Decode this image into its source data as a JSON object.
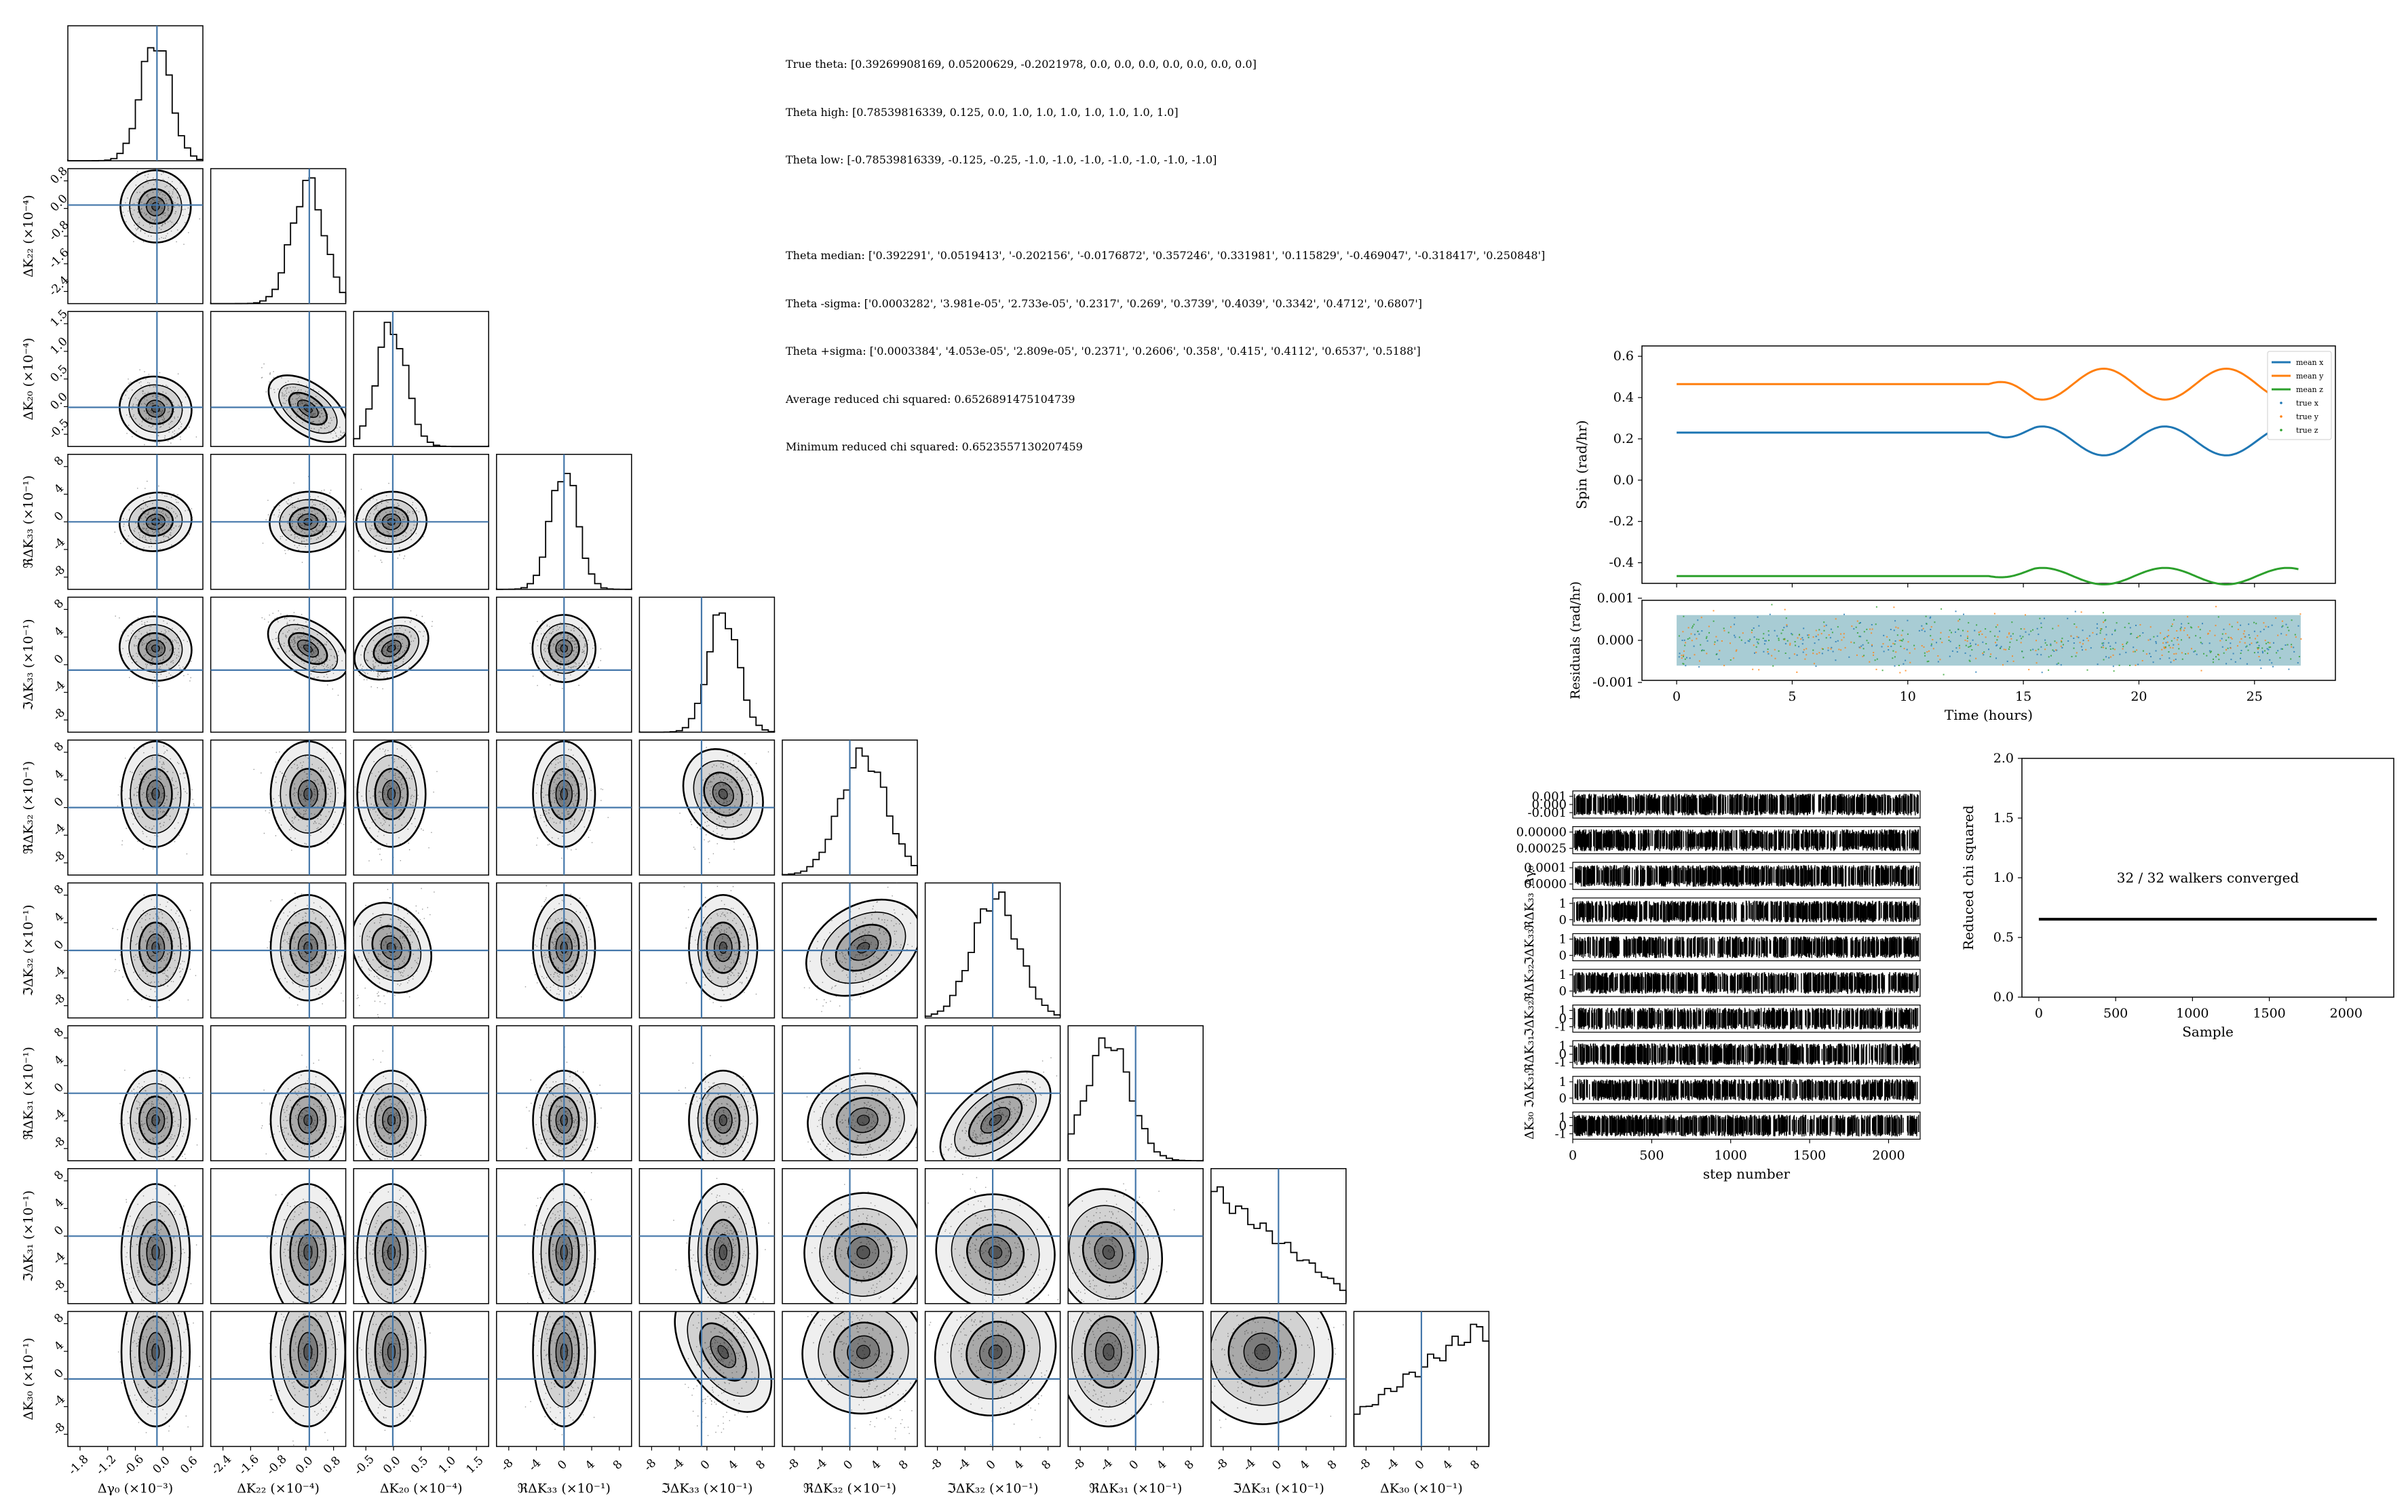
{
  "info_text": {
    "true_theta": "True theta: [0.39269908169, 0.05200629, -0.2021978, 0.0, 0.0, 0.0, 0.0, 0.0, 0.0, 0.0]",
    "theta_high": "Theta high: [0.78539816339, 0.125, 0.0, 1.0, 1.0, 1.0, 1.0, 1.0, 1.0, 1.0]",
    "theta_low": "Theta low: [-0.78539816339, -0.125, -0.25, -1.0, -1.0, -1.0, -1.0, -1.0, -1.0, -1.0]",
    "blank": "",
    "theta_median": "Theta median: ['0.392291', '0.0519413', '-0.202156', '-0.0176872', '0.357246', '0.331981', '0.115829', '-0.469047', '-0.318417', '0.250848']",
    "theta_minus_sigma": "Theta -sigma: ['0.0003282', '3.981e-05', '2.733e-05', '0.2317', '0.269', '0.3739', '0.4039', '0.3342', '0.4712', '0.6807']",
    "theta_plus_sigma": "Theta +sigma: ['0.0003384', '4.053e-05', '2.809e-05', '0.2371', '0.2606', '0.358', '0.415', '0.4112', '0.6537', '0.5188']",
    "avg_chi": "Average reduced chi squared: 0.6526891475104739",
    "min_chi": "Minimum reduced chi squared: 0.6523557130207459"
  },
  "chart_data": [
    {
      "type": "scatter",
      "name": "corner",
      "params": [
        {
          "label": "Δγ₀ (×10⁻³)",
          "ticks": [
            "-1.8",
            "-1.2",
            "-0.6",
            "0.0",
            "0.6"
          ],
          "ylabel": "",
          "yticks": [],
          "truth": 0.0
        },
        {
          "label": "ΔK₂₂ (×10⁻⁴)",
          "ticks": [
            "-2.4",
            "-1.6",
            "-0.8",
            "0.0",
            "0.8"
          ],
          "ylabel": "ΔK₂₂ (×10⁻⁴)",
          "yticks": [
            "0.8",
            "0.0",
            "-0.8",
            "-1.6",
            "-2.4"
          ],
          "truth": 0.0
        },
        {
          "label": "ΔK₂₀ (×10⁻⁴)",
          "ticks": [
            "-0.5",
            "0.0",
            "0.5",
            "1.0",
            "1.5"
          ],
          "ylabel": "ΔK₂₀ (×10⁻⁴)",
          "yticks": [
            "1.5",
            "1.0",
            "0.5",
            "0.0",
            "-0.5"
          ],
          "truth": 0.0
        },
        {
          "label": "ℜΔK₃₃ (×10⁻¹)",
          "ticks": [
            "-8",
            "-4",
            "0",
            "4",
            "8"
          ],
          "ylabel": "ℜΔK₃₃ (×10⁻¹)",
          "yticks": [
            "8",
            "4",
            "0",
            "-4",
            "-8"
          ],
          "truth": 0.0
        },
        {
          "label": "ℑΔK₃₃ (×10⁻¹)",
          "ticks": [
            "-8",
            "-4",
            "0",
            "4",
            "8"
          ],
          "ylabel": "ℑΔK₃₃ (×10⁻¹)",
          "yticks": [
            "8",
            "4",
            "0",
            "-4",
            "-8"
          ],
          "truth": 0.0
        },
        {
          "label": "ℜΔK₃₂ (×10⁻¹)",
          "ticks": [
            "-8",
            "-4",
            "0",
            "4",
            "8"
          ],
          "ylabel": "ℜΔK₃₂ (×10⁻¹)",
          "yticks": [
            "8",
            "4",
            "0",
            "-4",
            "-8"
          ],
          "truth": 0.0
        },
        {
          "label": "ℑΔK₃₂ (×10⁻¹)",
          "ticks": [
            "-8",
            "-4",
            "0",
            "4",
            "8"
          ],
          "ylabel": "ℑΔK₃₂ (×10⁻¹)",
          "yticks": [
            "8",
            "4",
            "0",
            "-4",
            "-8"
          ],
          "truth": 0.0
        },
        {
          "label": "ℜΔK₃₁ (×10⁻¹)",
          "ticks": [
            "-8",
            "-4",
            "0",
            "4",
            "8"
          ],
          "ylabel": "ℜΔK₃₁ (×10⁻¹)",
          "yticks": [
            "8",
            "4",
            "0",
            "-4",
            "-8"
          ],
          "truth": 0.0
        },
        {
          "label": "ℑΔK₃₁ (×10⁻¹)",
          "ticks": [
            "-8",
            "-4",
            "0",
            "4",
            "8"
          ],
          "ylabel": "ℑΔK₃₁ (×10⁻¹)",
          "yticks": [
            "8",
            "4",
            "0",
            "-4",
            "-8"
          ],
          "truth": 0.0
        },
        {
          "label": "ΔK₃₀ (×10⁻¹)",
          "ticks": [
            "-8",
            "-4",
            "0",
            "4",
            "8"
          ],
          "ylabel": "ΔK₃₀ (×10⁻¹)",
          "yticks": [
            "8",
            "4",
            "0",
            "-4",
            "-8"
          ],
          "truth": 0.0
        }
      ],
      "truth_color": "#4477aa"
    },
    {
      "type": "line",
      "name": "spin",
      "ylabel": "Spin (rad/hr)",
      "yticks": [
        "0.6",
        "0.4",
        "0.2",
        "0.0",
        "-0.2",
        "-0.4"
      ],
      "ylim": [
        -0.5,
        0.65
      ],
      "xlim": [
        -1.5,
        28.5
      ],
      "series": [
        {
          "name": "mean x",
          "color": "#1f77b4",
          "base": 0.23
        },
        {
          "name": "mean y",
          "color": "#ff7f0e",
          "base": 0.465
        },
        {
          "name": "mean z",
          "color": "#2ca02c",
          "base": -0.465
        }
      ],
      "legend": [
        "mean x",
        "mean y",
        "mean z",
        "true x",
        "true y",
        "true z"
      ],
      "legend_placement": "top-right"
    },
    {
      "type": "scatter",
      "name": "residuals",
      "ylabel": "Residuals (rad/hr)",
      "yticks": [
        "0.001",
        "0.000",
        "-0.001"
      ],
      "xlabel": "Time (hours)",
      "xticks": [
        "0",
        "5",
        "10",
        "15",
        "20",
        "25"
      ],
      "xlim": [
        -1.5,
        28.5
      ]
    },
    {
      "type": "line",
      "name": "walker-traces",
      "xlabel": "step number",
      "xticks": [
        "0",
        "500",
        "1000",
        "1500",
        "2000"
      ],
      "xlim": [
        0,
        2200
      ],
      "panel_ticks": [
        [
          "0.001",
          "0.000",
          "-0.001"
        ],
        [
          "0.00000",
          "0.00025"
        ],
        [
          "0.0001",
          "0.0000"
        ],
        [
          "1",
          "0"
        ],
        [
          "1",
          "0"
        ],
        [
          "1",
          "0"
        ],
        [
          "1",
          "0",
          "-1"
        ],
        [
          "1",
          "0",
          "-1"
        ],
        [
          "1",
          "0"
        ],
        [
          "1",
          "0",
          "-1"
        ]
      ],
      "panel_labels": [
        "",
        "",
        "Δγ₀",
        "ℜΔK₃₃",
        "ℑΔK₃₃",
        "ℜΔK₃₂",
        "ℑΔK₃₂",
        "ℜΔK₃₁",
        "ℑΔK₃₁",
        "ΔK₃₀"
      ]
    },
    {
      "type": "line",
      "name": "reduced-chi",
      "ylabel": "Reduced chi squared",
      "xlabel": "Sample",
      "xticks": [
        "0",
        "500",
        "1000",
        "1500",
        "2000"
      ],
      "yticks": [
        "2.0",
        "1.5",
        "1.0",
        "0.5",
        "0.0"
      ],
      "ylim": [
        0,
        2.0
      ],
      "xlim": [
        -110,
        2310
      ],
      "value": 0.6526891475104739,
      "annotation": "32 / 32 walkers converged"
    }
  ]
}
